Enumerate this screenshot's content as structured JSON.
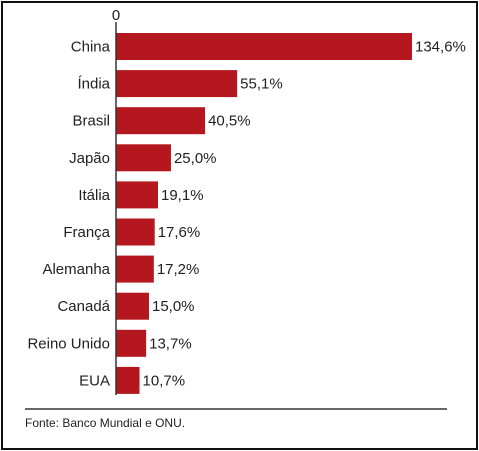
{
  "chart_data": {
    "type": "bar",
    "orientation": "horizontal",
    "categories": [
      "China",
      "Índia",
      "Brasil",
      "Japão",
      "Itália",
      "França",
      "Alemanha",
      "Canadá",
      "Reino Unido",
      "EUA"
    ],
    "values": [
      134.6,
      55.1,
      40.5,
      25.0,
      19.1,
      17.6,
      17.2,
      15.0,
      13.7,
      10.7
    ],
    "value_labels": [
      "134,6%",
      "55,1%",
      "40,5%",
      "25,0%",
      "19,1%",
      "17,6%",
      "17,2%",
      "15,0%",
      "13,7%",
      "10,7%"
    ],
    "axis_zero_label": "0",
    "xlim": [
      0,
      134.6
    ],
    "bar_color": "#b5171f",
    "grid": false
  },
  "source_note": "Fonte: Banco Mundial e ONU."
}
